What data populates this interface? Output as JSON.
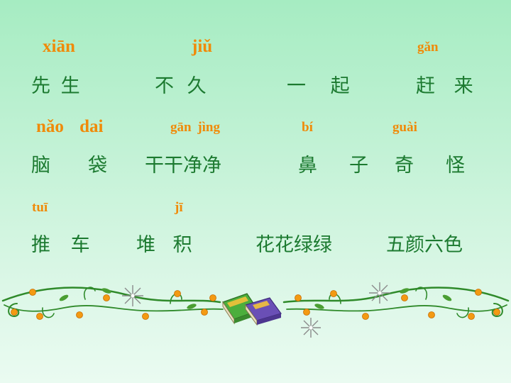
{
  "colors": {
    "pinyin": "#f08a08",
    "hanzi": "#1c7a30",
    "vine": "#2f8a2a",
    "berry": "#f39a12"
  },
  "row1": {
    "pinyin": [
      "xiān",
      "jiǔ",
      "gǎn"
    ],
    "hanzi": [
      "先 生",
      "不 久",
      "一 起",
      "赶 来"
    ]
  },
  "row2": {
    "pinyin": [
      "nǎo dai",
      "gān jìng",
      "bí",
      "guài"
    ],
    "hanzi": [
      "脑",
      "袋",
      "干干净净",
      "鼻",
      "子",
      "奇",
      "怪"
    ]
  },
  "row3": {
    "pinyin": [
      "tuī",
      "jī"
    ],
    "hanzi": [
      "推 车",
      "堆 积",
      "花花绿绿",
      "五颜六色"
    ]
  },
  "decor": {
    "border": "vine-border-decoration",
    "books": "books-icon",
    "sparkles": "sparkle-icon"
  }
}
